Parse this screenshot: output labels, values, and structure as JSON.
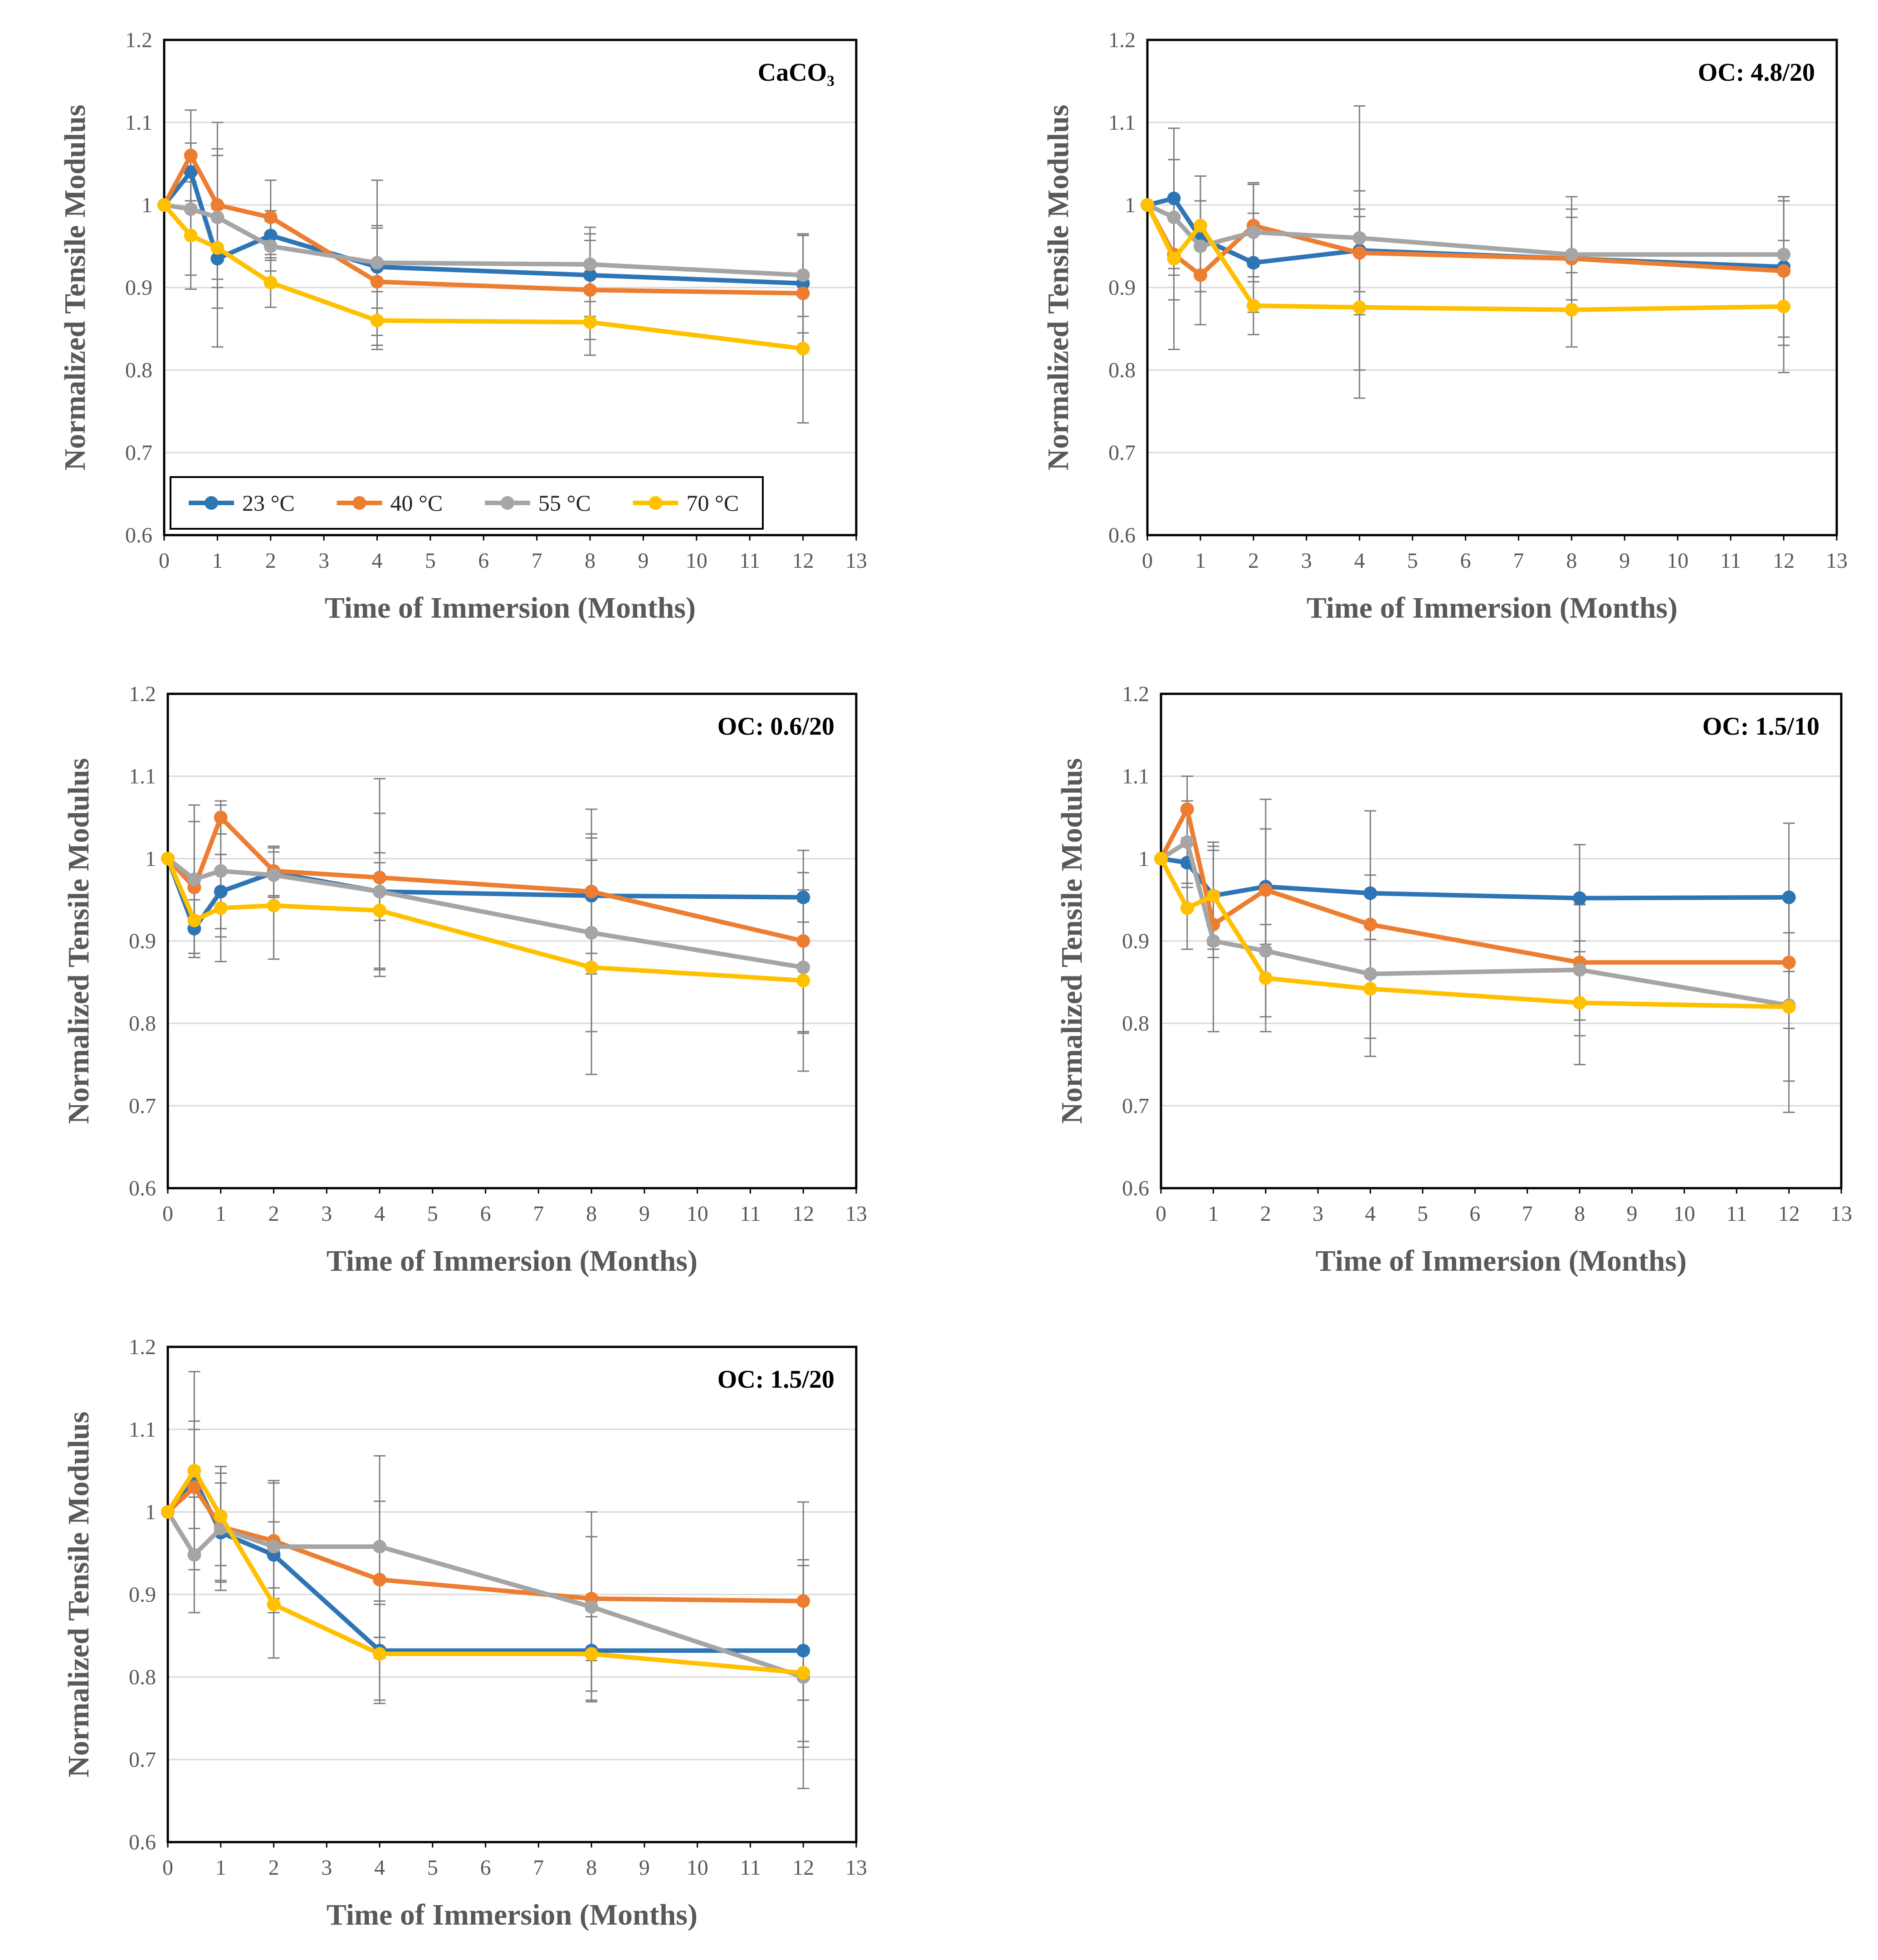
{
  "figure": {
    "legend": {
      "entries": [
        {
          "label": "23 °C",
          "color": "#2E75B6"
        },
        {
          "label": "40 °C",
          "color": "#ED7D31"
        },
        {
          "label": "55 °C",
          "color": "#A5A5A5"
        },
        {
          "label": "70 °C",
          "color": "#FFC000"
        }
      ]
    }
  },
  "chart_data": [
    {
      "type": "line",
      "title": "CaCO₃",
      "xlabel": "Time of Immersion (Months)",
      "ylabel": "Normalized Tensile Modulus",
      "xlim": [
        0,
        13
      ],
      "ylim": [
        0.6,
        1.2
      ],
      "x_ticks": [
        0,
        1,
        2,
        3,
        4,
        5,
        6,
        7,
        8,
        9,
        10,
        11,
        12,
        13
      ],
      "y_ticks": [
        0.6,
        0.7,
        0.8,
        0.9,
        1,
        1.1,
        1.2
      ],
      "x": [
        0,
        0.5,
        1,
        2,
        4,
        8,
        12
      ],
      "grid": true,
      "legend": "bottom-left",
      "series": [
        {
          "name": "23 °C",
          "color": "#2E75B6",
          "values": [
            1.0,
            1.04,
            0.935,
            0.963,
            0.925,
            0.915,
            0.905
          ],
          "errors": [
            0,
            0.035,
            0.06,
            0.03,
            0.05,
            0.05,
            0.06
          ]
        },
        {
          "name": "40 °C",
          "color": "#ED7D31",
          "values": [
            1.0,
            1.06,
            1.0,
            0.985,
            0.907,
            0.897,
            0.893
          ],
          "errors": [
            0,
            0.055,
            0.1,
            0.045,
            0.065,
            0.06,
            0.07
          ]
        },
        {
          "name": "55 °C",
          "color": "#A5A5A5",
          "values": [
            1.0,
            0.995,
            0.985,
            0.95,
            0.93,
            0.928,
            0.915
          ],
          "errors": [
            0,
            0.08,
            0.075,
            0.03,
            0.1,
            0.045,
            0.05
          ]
        },
        {
          "name": "70 °C",
          "color": "#FFC000",
          "values": [
            1.0,
            0.963,
            0.948,
            0.906,
            0.86,
            0.858,
            0.826
          ],
          "errors": [
            0,
            0.065,
            0.12,
            0.03,
            0.035,
            0.04,
            0.09
          ]
        }
      ]
    },
    {
      "type": "line",
      "title": "OC: 4.8/20",
      "xlabel": "Time of Immersion (Months)",
      "ylabel": "Normalized Tensile Modulus",
      "xlim": [
        0,
        13
      ],
      "ylim": [
        0.6,
        1.2
      ],
      "x_ticks": [
        0,
        1,
        2,
        3,
        4,
        5,
        6,
        7,
        8,
        9,
        10,
        11,
        12,
        13
      ],
      "y_ticks": [
        0.6,
        0.7,
        0.8,
        0.9,
        1,
        1.1,
        1.2
      ],
      "x": [
        0,
        0.5,
        1,
        2,
        4,
        8,
        12
      ],
      "grid": true,
      "series": [
        {
          "name": "23 °C",
          "color": "#2E75B6",
          "values": [
            1.0,
            1.008,
            0.96,
            0.93,
            0.945,
            0.935,
            0.925
          ],
          "errors": [
            0,
            0.085,
            0.045,
            0.06,
            0.05,
            0.05,
            0.085
          ]
        },
        {
          "name": "40 °C",
          "color": "#ED7D31",
          "values": [
            1.0,
            0.94,
            0.915,
            0.975,
            0.942,
            0.935,
            0.92
          ],
          "errors": [
            0,
            0.115,
            0.06,
            0.05,
            0.075,
            0.06,
            0.09
          ]
        },
        {
          "name": "55 °C",
          "color": "#A5A5A5",
          "values": [
            1.0,
            0.985,
            0.95,
            0.967,
            0.96,
            0.94,
            0.94
          ],
          "errors": [
            0,
            0.07,
            0.055,
            0.06,
            0.16,
            0.07,
            0.065
          ]
        },
        {
          "name": "70 °C",
          "color": "#FFC000",
          "values": [
            1.0,
            0.935,
            0.975,
            0.878,
            0.876,
            0.873,
            0.877
          ],
          "errors": [
            0,
            0.05,
            0.06,
            0.035,
            0.11,
            0.045,
            0.08
          ]
        }
      ]
    },
    {
      "type": "line",
      "title": "OC: 0.6/20",
      "xlabel": "Time of Immersion (Months)",
      "ylabel": "Normalized Tensile Modulus",
      "xlim": [
        0,
        13
      ],
      "ylim": [
        0.6,
        1.2
      ],
      "x_ticks": [
        0,
        1,
        2,
        3,
        4,
        5,
        6,
        7,
        8,
        9,
        10,
        11,
        12,
        13
      ],
      "y_ticks": [
        0.6,
        0.7,
        0.8,
        0.9,
        1,
        1.1,
        1.2
      ],
      "x": [
        0,
        0.5,
        1,
        2,
        4,
        8,
        12
      ],
      "grid": true,
      "series": [
        {
          "name": "23 °C",
          "color": "#2E75B6",
          "values": [
            1.0,
            0.915,
            0.96,
            0.983,
            0.96,
            0.955,
            0.953
          ],
          "errors": [
            0,
            0.035,
            0.045,
            0.03,
            0.035,
            0.07,
            0.03
          ]
        },
        {
          "name": "40 °C",
          "color": "#ED7D31",
          "values": [
            1.0,
            0.965,
            1.05,
            0.985,
            0.977,
            0.96,
            0.9
          ],
          "errors": [
            0,
            0.08,
            0.02,
            0.03,
            0.12,
            0.1,
            0.11
          ]
        },
        {
          "name": "55 °C",
          "color": "#A5A5A5",
          "values": [
            1.0,
            0.975,
            0.985,
            0.98,
            0.96,
            0.91,
            0.868
          ],
          "errors": [
            0,
            0.09,
            0.08,
            0.035,
            0.095,
            0.12,
            0.08
          ]
        },
        {
          "name": "70 °C",
          "color": "#FFC000",
          "values": [
            1.0,
            0.925,
            0.94,
            0.943,
            0.937,
            0.868,
            0.852
          ],
          "errors": [
            0,
            0.045,
            0.065,
            0.065,
            0.07,
            0.13,
            0.11
          ]
        }
      ]
    },
    {
      "type": "line",
      "title": "OC: 1.5/10",
      "xlabel": "Time of Immersion (Months)",
      "ylabel": "Normalized Tensile Modulus",
      "xlim": [
        0,
        13
      ],
      "ylim": [
        0.6,
        1.2
      ],
      "x_ticks": [
        0,
        1,
        2,
        3,
        4,
        5,
        6,
        7,
        8,
        9,
        10,
        11,
        12,
        13
      ],
      "y_ticks": [
        0.6,
        0.7,
        0.8,
        0.9,
        1,
        1.1,
        1.2
      ],
      "x": [
        0,
        0.5,
        1,
        2,
        4,
        8,
        12
      ],
      "grid": true,
      "series": [
        {
          "name": "23 °C",
          "color": "#2E75B6",
          "values": [
            1.0,
            0.995,
            0.955,
            0.966,
            0.958,
            0.952,
            0.953
          ],
          "errors": [
            0,
            0.03,
            0.06,
            0.07,
            0.1,
            0.065,
            0.09
          ]
        },
        {
          "name": "40 °C",
          "color": "#ED7D31",
          "values": [
            1.0,
            1.06,
            0.92,
            0.962,
            0.92,
            0.874,
            0.874
          ],
          "errors": [
            0,
            0.04,
            0.04,
            0.11,
            0.06,
            0.07,
            0.08
          ]
        },
        {
          "name": "55 °C",
          "color": "#A5A5A5",
          "values": [
            1.0,
            1.02,
            0.9,
            0.888,
            0.86,
            0.865,
            0.822
          ],
          "errors": [
            0,
            0.05,
            0.11,
            0.08,
            0.1,
            0.08,
            0.13
          ]
        },
        {
          "name": "70 °C",
          "color": "#FFC000",
          "values": [
            1.0,
            0.94,
            0.955,
            0.855,
            0.842,
            0.825,
            0.82
          ],
          "errors": [
            0,
            0.05,
            0.065,
            0.065,
            0.06,
            0.075,
            0.09
          ]
        }
      ]
    },
    {
      "type": "line",
      "title": "OC: 1.5/20",
      "xlabel": "Time of Immersion (Months)",
      "ylabel": "Normalized Tensile Modulus",
      "xlim": [
        0,
        13
      ],
      "ylim": [
        0.6,
        1.2
      ],
      "x_ticks": [
        0,
        1,
        2,
        3,
        4,
        5,
        6,
        7,
        8,
        9,
        10,
        11,
        12,
        13
      ],
      "y_ticks": [
        0.6,
        0.7,
        0.8,
        0.9,
        1,
        1.1,
        1.2
      ],
      "x": [
        0,
        0.5,
        1,
        2,
        4,
        8,
        12
      ],
      "grid": true,
      "series": [
        {
          "name": "23 °C",
          "color": "#2E75B6",
          "values": [
            1.0,
            1.04,
            0.975,
            0.948,
            0.832,
            0.832,
            0.832
          ],
          "errors": [
            0,
            0.06,
            0.06,
            0.04,
            0.06,
            0.06,
            0.11
          ]
        },
        {
          "name": "40 °C",
          "color": "#ED7D31",
          "values": [
            1.0,
            1.03,
            0.982,
            0.965,
            0.918,
            0.895,
            0.892
          ],
          "errors": [
            0,
            0.08,
            0.065,
            0.07,
            0.095,
            0.075,
            0.12
          ]
        },
        {
          "name": "55 °C",
          "color": "#A5A5A5",
          "values": [
            1.0,
            0.948,
            0.98,
            0.958,
            0.958,
            0.885,
            0.8
          ],
          "errors": [
            0,
            0.07,
            0.075,
            0.08,
            0.11,
            0.115,
            0.135
          ]
        },
        {
          "name": "70 °C",
          "color": "#FFC000",
          "values": [
            1.0,
            1.05,
            0.995,
            0.888,
            0.828,
            0.828,
            0.805
          ],
          "errors": [
            0,
            0.12,
            0.06,
            0.065,
            0.06,
            0.045,
            0.09
          ]
        }
      ]
    }
  ]
}
